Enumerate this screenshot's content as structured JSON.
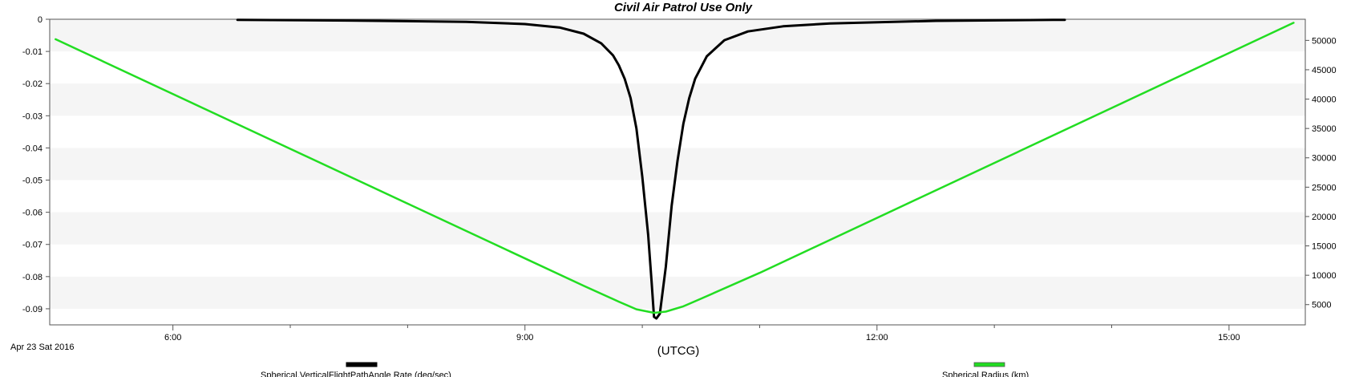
{
  "chart_data": {
    "type": "line",
    "title": "Civil Air Patrol Use Only",
    "xlabel": "(UTCG)",
    "date_label": "Apr 23 Sat 2016",
    "x_unit": "hours UTCG",
    "xlim": [
      4.95,
      15.65
    ],
    "x_ticks": [
      {
        "value": 6,
        "label": "6:00"
      },
      {
        "value": 9,
        "label": "9:00"
      },
      {
        "value": 12,
        "label": "12:00"
      },
      {
        "value": 15,
        "label": "15:00"
      }
    ],
    "x_minor_ticks": [
      7,
      8,
      10,
      11,
      13,
      14
    ],
    "ylim_left": [
      -0.095,
      0
    ],
    "y_ticks_left": [
      0,
      -0.01,
      -0.02,
      -0.03,
      -0.04,
      -0.05,
      -0.06,
      -0.07,
      -0.08,
      -0.09
    ],
    "y_tick_labels_left": [
      "0",
      "-0.01",
      "-0.02",
      "-0.03",
      "-0.04",
      "-0.05",
      "-0.06",
      "-0.07",
      "-0.08",
      "-0.09"
    ],
    "ylim_right": [
      1550,
      53600
    ],
    "y_ticks_right": [
      5000,
      10000,
      15000,
      20000,
      25000,
      30000,
      35000,
      40000,
      45000,
      50000
    ],
    "y_tick_labels_right": [
      "5000",
      "10000",
      "15000",
      "20000",
      "25000",
      "30000",
      "35000",
      "40000",
      "45000",
      "50000"
    ],
    "grid": "alternating horizontal bands",
    "legend_position": "bottom",
    "series": [
      {
        "name": "Spherical.VerticalFlightPathAngle Rate (deg/sec)",
        "axis": "left",
        "color": "#000000",
        "x": [
          6.55,
          7.5,
          8.5,
          9.0,
          9.3,
          9.5,
          9.65,
          9.75,
          9.8,
          9.85,
          9.9,
          9.95,
          10.0,
          10.05,
          10.08,
          10.1,
          10.12,
          10.15,
          10.2,
          10.25,
          10.3,
          10.35,
          10.4,
          10.45,
          10.55,
          10.7,
          10.9,
          11.2,
          11.6,
          12.5,
          13.5,
          13.6
        ],
        "values": [
          -0.0002,
          -0.0004,
          -0.0008,
          -0.0015,
          -0.0026,
          -0.0045,
          -0.0075,
          -0.0112,
          -0.0143,
          -0.0185,
          -0.0245,
          -0.034,
          -0.049,
          -0.067,
          -0.082,
          -0.0925,
          -0.093,
          -0.0915,
          -0.077,
          -0.058,
          -0.044,
          -0.0325,
          -0.0245,
          -0.0185,
          -0.0115,
          -0.0065,
          -0.0038,
          -0.0022,
          -0.0013,
          -0.0005,
          -0.0002,
          -0.0002
        ]
      },
      {
        "name": "Spherical.Radius (km)",
        "axis": "right",
        "color": "#22dd22",
        "x": [
          5.0,
          9.5,
          9.8,
          9.95,
          10.1,
          10.2,
          10.35,
          10.5,
          11.0,
          15.55
        ],
        "values": [
          50200,
          8200,
          5500,
          4200,
          3600,
          3800,
          4700,
          6000,
          10400,
          53000
        ]
      }
    ]
  }
}
